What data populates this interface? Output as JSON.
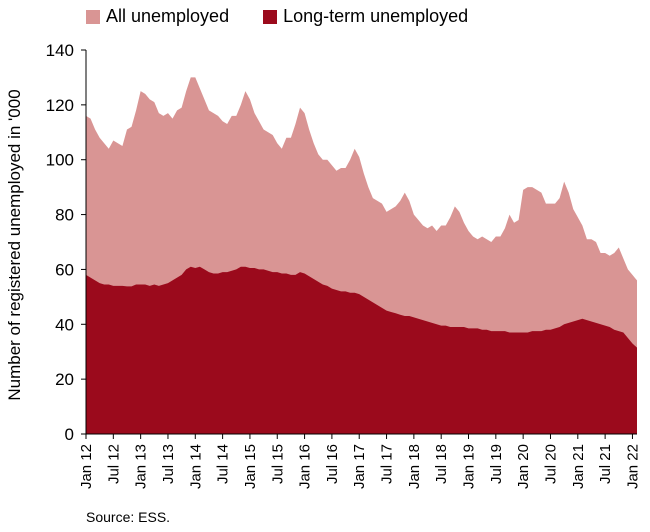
{
  "chart_data": {
    "type": "area",
    "ylabel": "Number of registered unemployed in '000",
    "ylim": [
      0,
      140
    ],
    "yticks": [
      0,
      20,
      40,
      60,
      80,
      100,
      120,
      140
    ],
    "xtick_labels": [
      "Jan 12",
      "Jul 12",
      "Jan 13",
      "Jul 13",
      "Jan 14",
      "Jul 14",
      "Jan 15",
      "Jul 15",
      "Jan 16",
      "Jul 16",
      "Jan 17",
      "Jul 17",
      "Jan 18",
      "Jul 18",
      "Jan 19",
      "Jul 19",
      "Jan 20",
      "Jul 20",
      "Jan 21",
      "Jul 21",
      "Jan 22"
    ],
    "grid": false,
    "legend_position": "top",
    "series": [
      {
        "name": "All unemployed",
        "color": "#d99594",
        "values": [
          116,
          115,
          111,
          108,
          106,
          104,
          107,
          106,
          105,
          111,
          112,
          118,
          125,
          124,
          122,
          121,
          117,
          116,
          117,
          115,
          118,
          119,
          125,
          130,
          130,
          126,
          122,
          118,
          117,
          116,
          114,
          113,
          116,
          116,
          120,
          125,
          122,
          117,
          114,
          111,
          110,
          109,
          106,
          104,
          108,
          108,
          113,
          119,
          117,
          111,
          106,
          102,
          100,
          100,
          98,
          96,
          97,
          97,
          100,
          104,
          101,
          95,
          90,
          86,
          85,
          84,
          81,
          82,
          83,
          85,
          88,
          85,
          80,
          78,
          76,
          75,
          76,
          74,
          76,
          76,
          79,
          83,
          81,
          77,
          74,
          72,
          71,
          72,
          71,
          70,
          72,
          72,
          75,
          80,
          77,
          78,
          89,
          90,
          90,
          89,
          88,
          84,
          84,
          84,
          86,
          92,
          88,
          82,
          79,
          76,
          71,
          71,
          70,
          66,
          66,
          65,
          66,
          68,
          64,
          60,
          58,
          56
        ]
      },
      {
        "name": "Long-term unemployed",
        "color": "#9b0a1c",
        "values": [
          58,
          57,
          56,
          55,
          54.5,
          54.5,
          54,
          54,
          54,
          53.8,
          53.8,
          54.5,
          54.5,
          54.5,
          54,
          54.5,
          54,
          54.5,
          55,
          56,
          57,
          58,
          60,
          61,
          60.5,
          61,
          60,
          59,
          58.5,
          58.5,
          59,
          59,
          59.5,
          60,
          61,
          61,
          60.5,
          60.5,
          60,
          60,
          59.5,
          59,
          59,
          58.5,
          58.5,
          58,
          58,
          59,
          58.5,
          57.5,
          56.5,
          55.5,
          54.5,
          54,
          53,
          52.5,
          52,
          52,
          51.5,
          51.5,
          51,
          50,
          49,
          48,
          47,
          46,
          45,
          44.5,
          44,
          43.5,
          43,
          43,
          42.5,
          42,
          41.5,
          41,
          40.5,
          40,
          39.5,
          39.5,
          39,
          39,
          39,
          39,
          38.5,
          38.5,
          38.5,
          38,
          38,
          37.5,
          37.5,
          37.5,
          37.5,
          37,
          37,
          37,
          37,
          37,
          37.5,
          37.5,
          37.5,
          38,
          38,
          38.5,
          39,
          40,
          40.5,
          41,
          41.5,
          42,
          41.5,
          41,
          40.5,
          40,
          39.5,
          39,
          38,
          37.5,
          37,
          35,
          33,
          31.5
        ]
      }
    ]
  },
  "source": "Source: ESS."
}
